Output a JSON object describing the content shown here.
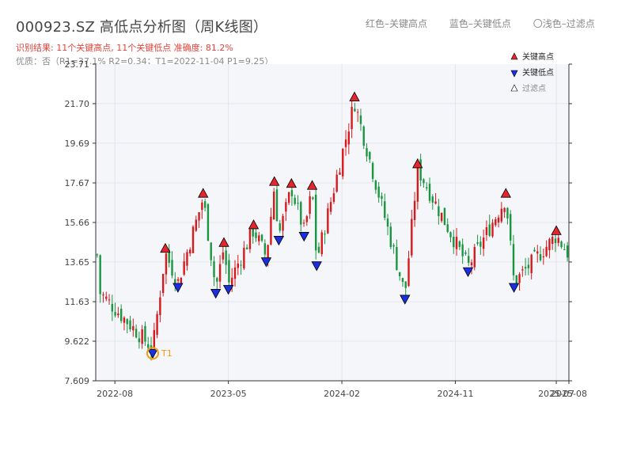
{
  "header": {
    "title": "000923.SZ 高低点分析图（周K线图）",
    "summary": "识别结果: 11个关键高点, 11个关键低点   准确度: 81.2%",
    "quality": "优质：否（R1=37.1%  R2=0.34；T1=2022-11-04 P1=9.25）",
    "legend_high": "红色–关键高点",
    "legend_low": "蓝色–关键低点",
    "legend_filtered": "〇浅色–过滤点"
  },
  "chart_data": {
    "type": "candlestick",
    "title": "000923.SZ 高低点分析图（周K线图）",
    "ylim": [
      7.609,
      23.71
    ],
    "yticks": [
      "7.609",
      "9.622",
      "11.63",
      "13.65",
      "15.66",
      "17.67",
      "19.69",
      "21.70",
      "23.71"
    ],
    "xticks": [
      {
        "date": "2022-08",
        "label": "2022-08"
      },
      {
        "date": "2023-05",
        "label": "2023-05"
      },
      {
        "date": "2024-02",
        "label": "2024-02"
      },
      {
        "date": "2024-11",
        "label": "2024-11"
      },
      {
        "date": "2025-07",
        "label": "2025-07"
      },
      {
        "date": "2025-08",
        "label": "2025-08"
      }
    ],
    "x_range": [
      "2022-08",
      "2025-08"
    ],
    "legend": {
      "position": "top-right",
      "items": [
        {
          "label": "关键高点",
          "marker": "triangle-up",
          "color": "#e3262d"
        },
        {
          "label": "关键低点",
          "marker": "triangle-down",
          "color": "#1c2fe0"
        },
        {
          "label": "过滤点",
          "marker": "triangle-up-hollow",
          "color": "#ffffff"
        }
      ]
    },
    "key_points": [
      {
        "type": "low",
        "date": "2022-11",
        "price": 9.25,
        "label": "T1"
      },
      {
        "type": "high",
        "date": "2022-12",
        "price": 14.1
      },
      {
        "type": "low",
        "date": "2023-01",
        "price": 12.6
      },
      {
        "type": "high",
        "date": "2023-03",
        "price": 16.9
      },
      {
        "type": "low",
        "date": "2023-04",
        "price": 12.3
      },
      {
        "type": "high",
        "date": "2023-04-20",
        "price": 14.4
      },
      {
        "type": "low",
        "date": "2023-05",
        "price": 12.5
      },
      {
        "type": "high",
        "date": "2023-07",
        "price": 15.3
      },
      {
        "type": "low",
        "date": "2023-08",
        "price": 13.9
      },
      {
        "type": "high",
        "date": "2023-08-20",
        "price": 17.5
      },
      {
        "type": "low",
        "date": "2023-09",
        "price": 15.0
      },
      {
        "type": "high",
        "date": "2023-10",
        "price": 17.4
      },
      {
        "type": "low",
        "date": "2023-11",
        "price": 15.2
      },
      {
        "type": "high",
        "date": "2023-11-20",
        "price": 17.3
      },
      {
        "type": "low",
        "date": "2023-12",
        "price": 13.7
      },
      {
        "type": "high",
        "date": "2024-03",
        "price": 21.8
      },
      {
        "type": "low",
        "date": "2024-07",
        "price": 12.0
      },
      {
        "type": "high",
        "date": "2024-08",
        "price": 18.4
      },
      {
        "type": "low",
        "date": "2024-12",
        "price": 13.4
      },
      {
        "type": "high",
        "date": "2025-03",
        "price": 16.9
      },
      {
        "type": "low",
        "date": "2025-03-20",
        "price": 12.6
      },
      {
        "type": "high",
        "date": "2025-07",
        "price": 15.0
      }
    ],
    "colors": {
      "up": "#d7191c",
      "down": "#1a9641",
      "high_marker": "#e3262d",
      "low_marker": "#1c2fe0",
      "t1_ring": "#f39c12",
      "plot_bg": "#f5f6fa"
    },
    "grid": true
  }
}
